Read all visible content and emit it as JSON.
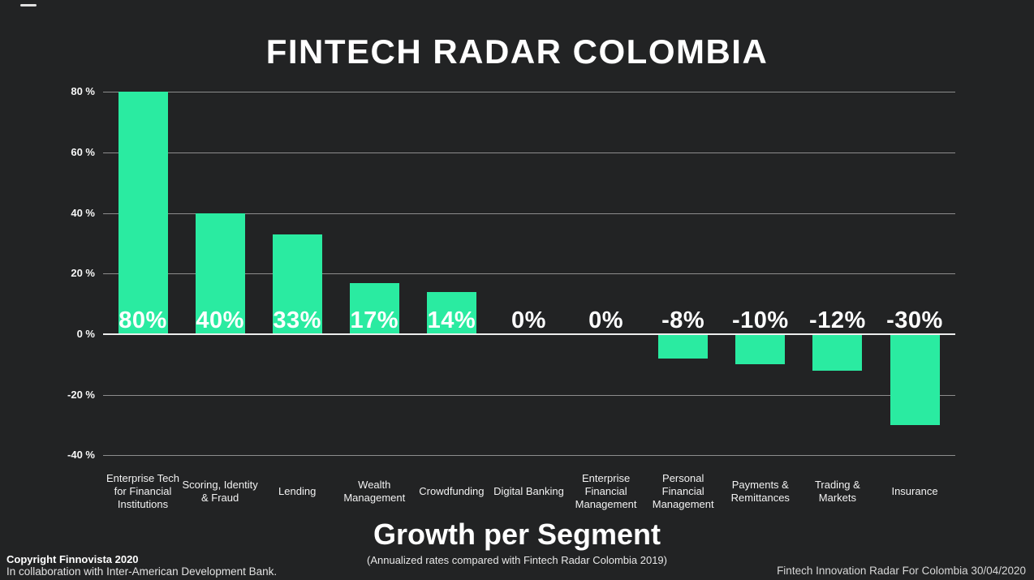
{
  "title": "FINTECH RADAR COLOMBIA",
  "colors": {
    "background": "#222324",
    "bar": "#2AEBA1",
    "gridline": "#8d8d8d",
    "zero_axis": "#ededed",
    "text": "#ffffff"
  },
  "chart_data": {
    "type": "bar",
    "title": "FINTECH RADAR COLOMBIA",
    "xlabel": "Growth per Segment",
    "ylabel": "",
    "ylim": [
      -40,
      80
    ],
    "grid": true,
    "legend": "none",
    "bar_color": "#2AEBA1",
    "categories": [
      "Enterprise Tech for Financial Institutions",
      "Scoring, Identity & Fraud",
      "Lending",
      "Wealth Management",
      "Crowdfunding",
      "Digital Banking",
      "Enterprise Financial Management",
      "Personal Financial Management",
      "Payments & Remittances",
      "Trading & Markets",
      "Insurance"
    ],
    "values": [
      80,
      40,
      33,
      17,
      14,
      0,
      0,
      -8,
      -10,
      -12,
      -30
    ],
    "bar_labels": [
      "80%",
      "40%",
      "33%",
      "17%",
      "14%",
      "0%",
      "0%",
      "-8%",
      "-10%",
      "-12%",
      "-30%"
    ],
    "yticks": [
      {
        "value": 80,
        "label": "80 %"
      },
      {
        "value": 60,
        "label": "60 %"
      },
      {
        "value": 40,
        "label": "40 %"
      },
      {
        "value": 20,
        "label": "20 %"
      },
      {
        "value": 0,
        "label": "0 %"
      },
      {
        "value": -20,
        "label": "-20 %"
      },
      {
        "value": -40,
        "label": "-40 %"
      }
    ]
  },
  "caption": {
    "title": "Growth per Segment",
    "subtitle": "(Annualized rates compared with Fintech Radar Colombia 2019)"
  },
  "footer": {
    "copyright": "Copyright Finnovista 2020",
    "collaboration": "In collaboration with Inter-American Development Bank.",
    "right_note": "Fintech Innovation Radar For Colombia 30/04/2020"
  }
}
